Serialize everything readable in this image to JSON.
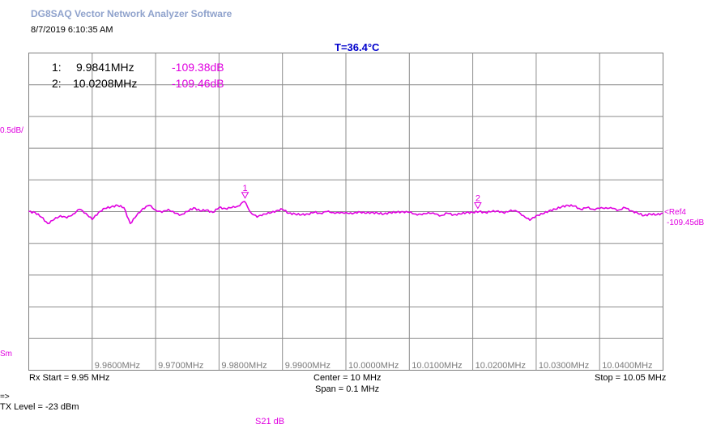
{
  "app_title": "DG8SAQ Vector Network Analyzer Software",
  "timestamp": "8/7/2019   6:10:35 AM",
  "temperature": "T=36.4°C",
  "markers": [
    {
      "index": "1:",
      "freq": "9.9841MHz",
      "value": "-109.38dB",
      "label": "1",
      "x_mhz": 9.9841
    },
    {
      "index": "2:",
      "freq": "10.0208MHz",
      "value": "-109.46dB",
      "label": "2",
      "x_mhz": 10.0208
    }
  ],
  "scale_label": "0.5dB/",
  "smoothing_label": "Sm",
  "ref_label": "<Ref4",
  "ref_value": "-109.45dB",
  "arrow_label": "=>",
  "rx_start": "Rx Start = 9.95 MHz",
  "center": "Center = 10 MHz",
  "span": "Span = 0.1 MHz",
  "stop": "Stop = 10.05 MHz",
  "tx_level": "TX Level = -23 dBm",
  "trace_label": "S21  dB",
  "colors": {
    "trace": "#e000e0",
    "grid": "#808080",
    "temperature": "#0000cc",
    "title": "#8fa2cc"
  },
  "chart_data": {
    "type": "line",
    "xlim": [
      9.95,
      10.05
    ],
    "ylim_db": [
      -111.45,
      -107.45
    ],
    "ref_db": -109.45,
    "y_scale_db_per_div": 0.5,
    "x_tick_labels": [
      "9.9600MHz",
      "9.9700MHz",
      "9.9800MHz",
      "9.9900MHz",
      "10.0000MHz",
      "10.0100MHz",
      "10.0200MHz",
      "10.0300MHz",
      "10.0400MHz"
    ],
    "series": [
      {
        "name": "S21  dB",
        "x": [
          9.95,
          9.951,
          9.952,
          9.953,
          9.954,
          9.955,
          9.956,
          9.957,
          9.958,
          9.959,
          9.96,
          9.961,
          9.962,
          9.963,
          9.964,
          9.965,
          9.966,
          9.967,
          9.968,
          9.969,
          9.97,
          9.971,
          9.972,
          9.973,
          9.974,
          9.975,
          9.976,
          9.977,
          9.978,
          9.979,
          9.98,
          9.981,
          9.982,
          9.983,
          9.984,
          9.985,
          9.986,
          9.987,
          9.988,
          9.989,
          9.99,
          9.991,
          9.992,
          9.993,
          9.994,
          9.995,
          9.996,
          9.997,
          9.998,
          9.999,
          10.0,
          10.001,
          10.002,
          10.003,
          10.004,
          10.005,
          10.006,
          10.007,
          10.008,
          10.009,
          10.01,
          10.011,
          10.012,
          10.013,
          10.014,
          10.015,
          10.016,
          10.017,
          10.018,
          10.019,
          10.02,
          10.021,
          10.022,
          10.023,
          10.024,
          10.025,
          10.026,
          10.027,
          10.028,
          10.029,
          10.03,
          10.031,
          10.032,
          10.033,
          10.034,
          10.035,
          10.036,
          10.037,
          10.038,
          10.039,
          10.04,
          10.041,
          10.042,
          10.043,
          10.044,
          10.045,
          10.046,
          10.047,
          10.048,
          10.049,
          10.05
        ],
        "y": [
          -109.45,
          -109.46,
          -109.52,
          -109.6,
          -109.55,
          -109.5,
          -109.53,
          -109.48,
          -109.42,
          -109.47,
          -109.55,
          -109.46,
          -109.41,
          -109.39,
          -109.37,
          -109.4,
          -109.6,
          -109.5,
          -109.41,
          -109.37,
          -109.43,
          -109.46,
          -109.42,
          -109.47,
          -109.49,
          -109.45,
          -109.4,
          -109.44,
          -109.43,
          -109.46,
          -109.4,
          -109.41,
          -109.4,
          -109.38,
          -109.32,
          -109.46,
          -109.52,
          -109.48,
          -109.47,
          -109.44,
          -109.42,
          -109.47,
          -109.48,
          -109.49,
          -109.48,
          -109.46,
          -109.47,
          -109.45,
          -109.46,
          -109.47,
          -109.46,
          -109.48,
          -109.45,
          -109.47,
          -109.46,
          -109.47,
          -109.48,
          -109.46,
          -109.46,
          -109.45,
          -109.46,
          -109.48,
          -109.49,
          -109.46,
          -109.48,
          -109.5,
          -109.47,
          -109.49,
          -109.48,
          -109.46,
          -109.46,
          -109.45,
          -109.46,
          -109.45,
          -109.44,
          -109.47,
          -109.43,
          -109.45,
          -109.5,
          -109.56,
          -109.5,
          -109.48,
          -109.44,
          -109.42,
          -109.39,
          -109.37,
          -109.38,
          -109.42,
          -109.4,
          -109.42,
          -109.41,
          -109.4,
          -109.41,
          -109.43,
          -109.4,
          -109.44,
          -109.47,
          -109.5,
          -109.48,
          -109.49,
          -109.47
        ]
      }
    ]
  }
}
